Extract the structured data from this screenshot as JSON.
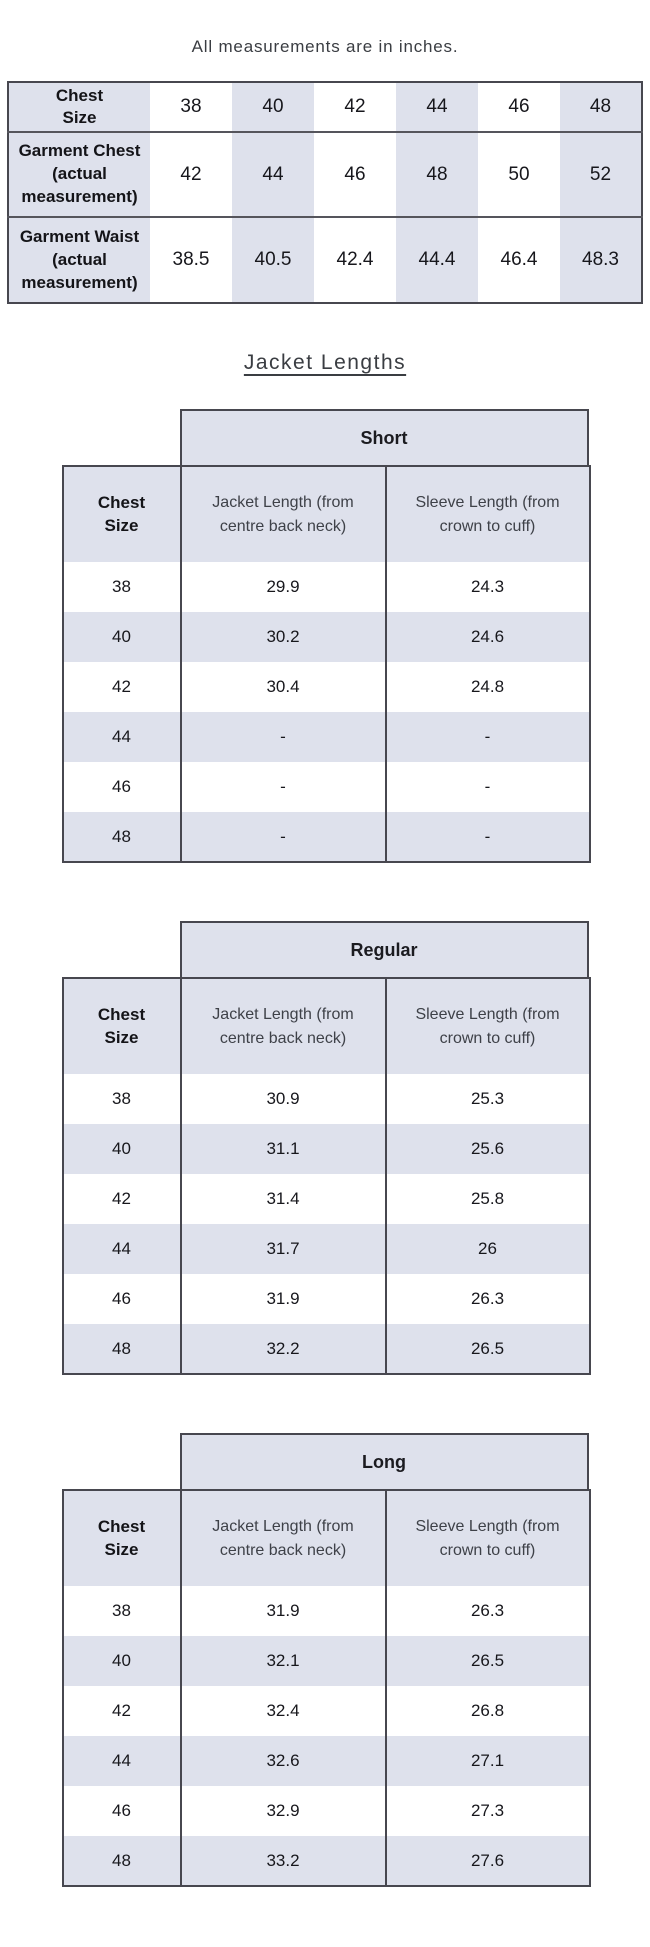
{
  "page": {
    "caption": "All measurements are in inches.",
    "section_heading": "Jacket Lengths"
  },
  "colors": {
    "stripe_lavender": "#dee1ec",
    "border_dark": "#47474f",
    "text_dark": "#17171c",
    "text_muted": "#3e4148"
  },
  "size_table": {
    "columns": [
      "Chest Size",
      "38",
      "40",
      "42",
      "44",
      "46",
      "48"
    ],
    "rows": [
      {
        "label": "Garment Chest (actual measurement)",
        "values": [
          "42",
          "44",
          "46",
          "48",
          "50",
          "52"
        ]
      },
      {
        "label": "Garment Waist (actual measurement)",
        "values": [
          "38.5",
          "40.5",
          "42.4",
          "44.4",
          "46.4",
          "48.3"
        ]
      }
    ]
  },
  "jacket_tables": [
    {
      "variant": "Short",
      "col_headers": [
        "Chest Size",
        "Jacket Length (from centre back neck)",
        "Sleeve Length (from crown to cuff)"
      ],
      "rows": [
        [
          "38",
          "29.9",
          "24.3"
        ],
        [
          "40",
          "30.2",
          "24.6"
        ],
        [
          "42",
          "30.4",
          "24.8"
        ],
        [
          "44",
          "-",
          "-"
        ],
        [
          "46",
          "-",
          "-"
        ],
        [
          "48",
          "-",
          "-"
        ]
      ]
    },
    {
      "variant": "Regular",
      "col_headers": [
        "Chest Size",
        "Jacket Length (from centre back neck)",
        "Sleeve Length (from crown to cuff)"
      ],
      "rows": [
        [
          "38",
          "30.9",
          "25.3"
        ],
        [
          "40",
          "31.1",
          "25.6"
        ],
        [
          "42",
          "31.4",
          "25.8"
        ],
        [
          "44",
          "31.7",
          "26"
        ],
        [
          "46",
          "31.9",
          "26.3"
        ],
        [
          "48",
          "32.2",
          "26.5"
        ]
      ]
    },
    {
      "variant": "Long",
      "col_headers": [
        "Chest Size",
        "Jacket Length (from centre back neck)",
        "Sleeve Length (from crown to cuff)"
      ],
      "rows": [
        [
          "38",
          "31.9",
          "26.3"
        ],
        [
          "40",
          "32.1",
          "26.5"
        ],
        [
          "42",
          "32.4",
          "26.8"
        ],
        [
          "44",
          "32.6",
          "27.1"
        ],
        [
          "46",
          "32.9",
          "27.3"
        ],
        [
          "48",
          "33.2",
          "27.6"
        ]
      ]
    }
  ]
}
